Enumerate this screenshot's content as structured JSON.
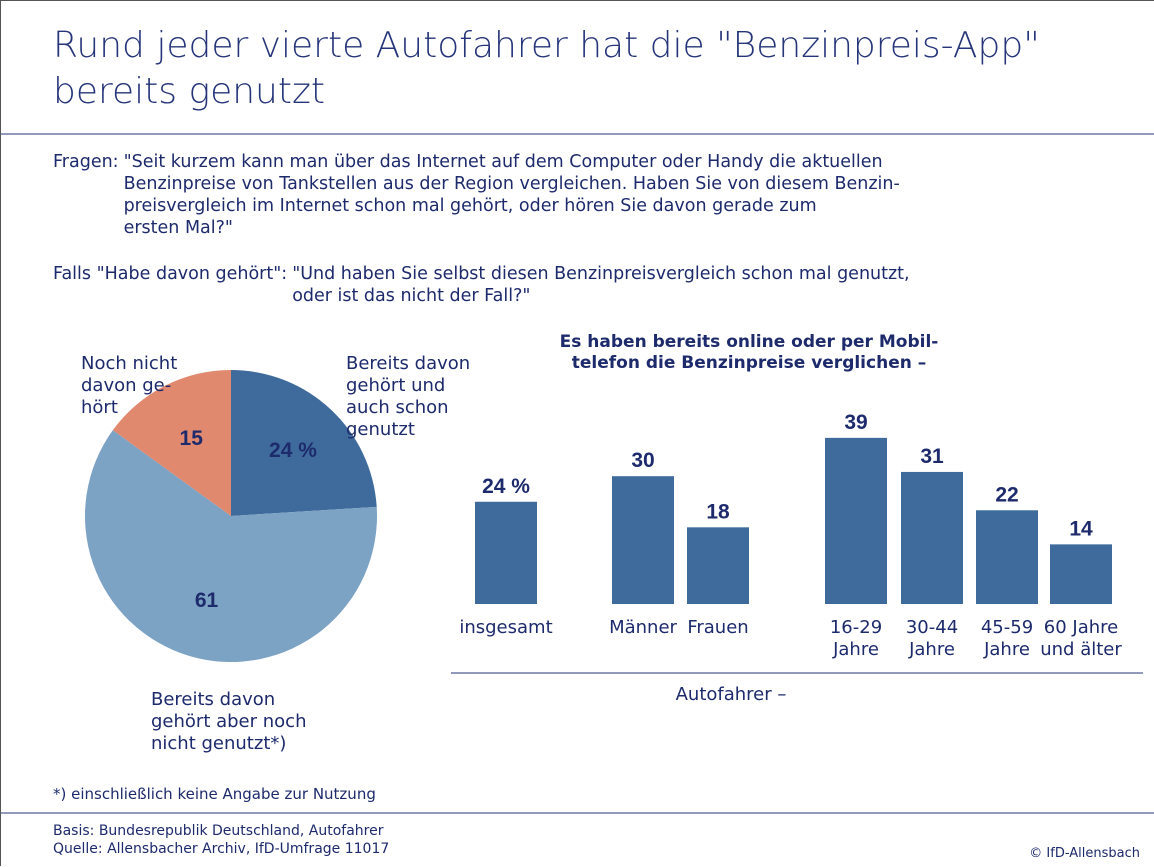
{
  "title": "Rund jeder vierte Autofahrer hat die \"Benzinpreis-App\"\nbereits genutzt",
  "questions": [
    {
      "lead": "Fragen:",
      "text": "\"Seit kurzem kann man über das Internet auf dem Computer oder Handy die aktuellen\nBenzinpreise von Tankstellen aus der Region vergleichen. Haben Sie von diesem Benzin-\npreisvergleich im Internet schon mal gehört, oder hören Sie davon gerade zum\nersten Mal?\""
    },
    {
      "lead": "Falls \"Habe davon gehört\":",
      "text": "\"Und haben Sie selbst diesen Benzinpreisvergleich schon mal genutzt,\noder ist das nicht der Fall?\""
    }
  ],
  "chart_data": [
    {
      "type": "pie",
      "categories": [
        "Bereits davon\ngehört und\nauch schon\ngenutzt",
        "Bereits davon\ngehört aber noch\nnicht genutzt*)",
        "Noch nicht\ndavon ge-\nhört"
      ],
      "values": [
        24,
        61,
        15
      ],
      "value_labels": [
        "24 %",
        "61",
        "15"
      ],
      "colors": [
        "#3f6b9c",
        "#7ca2c4",
        "#e0896f"
      ]
    },
    {
      "type": "bar",
      "title": "Es haben bereits online oder per Mobil-\ntelefon die Benzinpreise verglichen –",
      "categories": [
        "insgesamt",
        "Männer",
        "Frauen",
        "16-29\nJahre",
        "30-44\nJahre",
        "45-59\nJahre",
        "60 Jahre\nund älter"
      ],
      "values": [
        24,
        30,
        18,
        39,
        31,
        22,
        14
      ],
      "value_labels": [
        "24 %",
        "30",
        "18",
        "39",
        "31",
        "22",
        "14"
      ],
      "color": "#3f6b9c",
      "xlabel": "Autofahrer –"
    }
  ],
  "footnote": "*) einschließlich keine Angabe zur Nutzung",
  "source": [
    "Basis: Bundesrepublik Deutschland, Autofahrer",
    "Quelle: Allensbacher Archiv, IfD-Umfrage 11017"
  ],
  "copyright": "© IfD-Allensbach"
}
